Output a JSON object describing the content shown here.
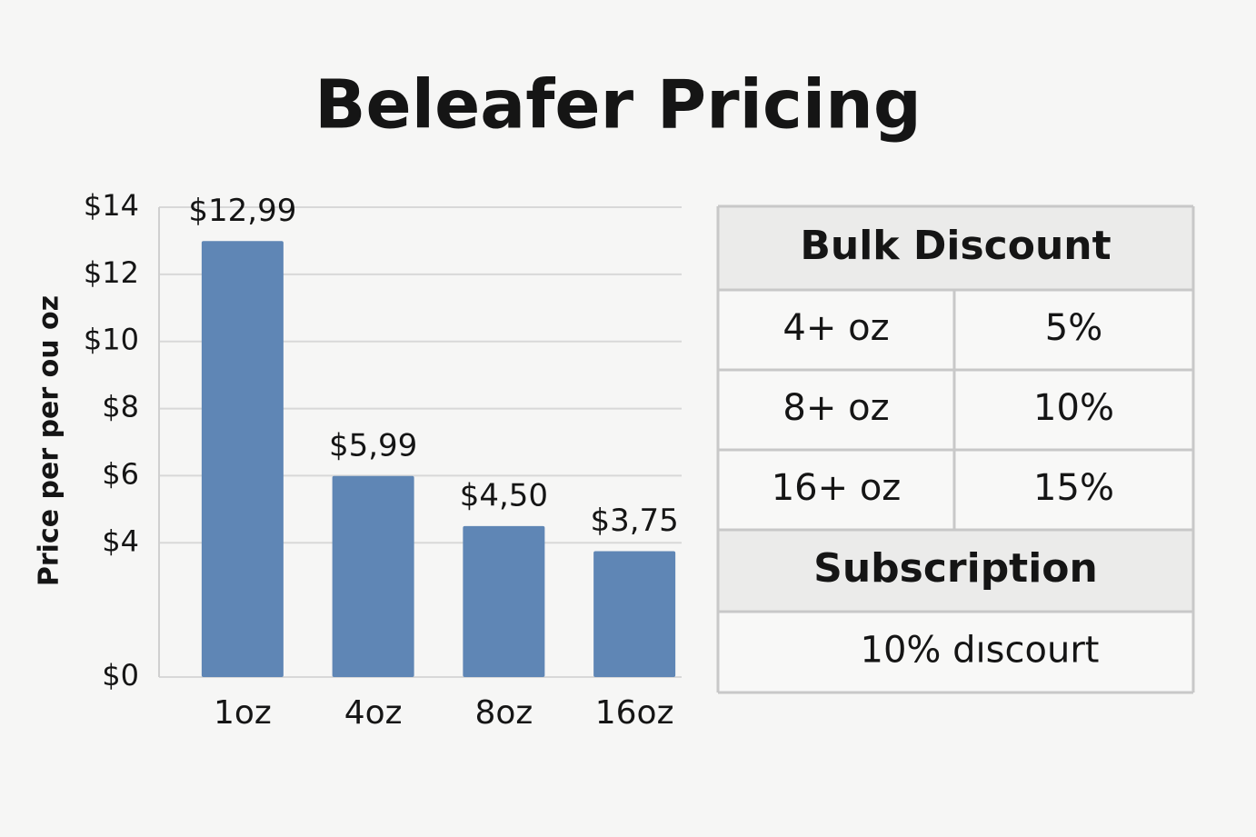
{
  "chart_data": {
    "type": "bar",
    "title": "Beleafer Pricing",
    "y_label": "Price per per ou oz",
    "categories": [
      "1oz",
      "4oz",
      "8oz",
      "16oz"
    ],
    "values": [
      12.99,
      5.99,
      4.5,
      3.75
    ],
    "value_labels": [
      "$12,99",
      "$5,99",
      "$4,50",
      "$3,75"
    ],
    "color": "#5f86b5",
    "ylim": [
      0,
      14
    ],
    "yticks": [
      {
        "value": 0,
        "label": "$0"
      },
      {
        "value": 4,
        "label": "$4"
      },
      {
        "value": 6,
        "label": "$6"
      },
      {
        "value": 8,
        "label": "$8"
      },
      {
        "value": 10,
        "label": "$10"
      },
      {
        "value": 12,
        "label": "$12"
      },
      {
        "value": 14,
        "label": "$14"
      }
    ],
    "grid": true
  },
  "table": {
    "title": "Bulk Discount",
    "rows": [
      [
        "4+ oz",
        "5%"
      ],
      [
        "8+ oz",
        "10%"
      ],
      [
        "16+ oz",
        "15%"
      ]
    ],
    "subscription_title": "Subscription",
    "subscription_text": "10% dıscourt"
  }
}
